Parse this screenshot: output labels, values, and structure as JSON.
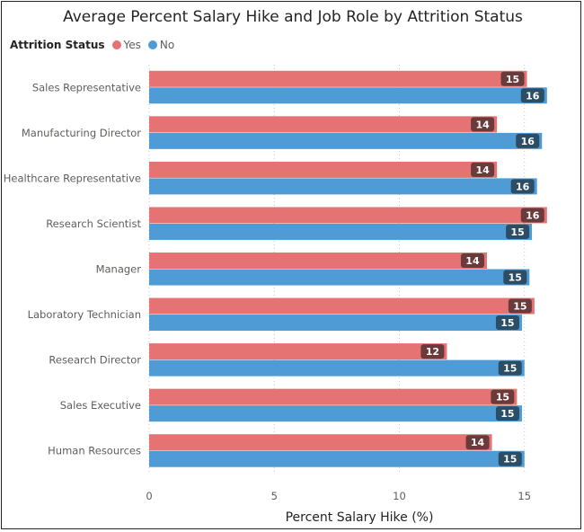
{
  "chart_data": {
    "type": "bar",
    "orientation": "horizontal",
    "title": "Average Percent Salary Hike and Job Role by Attrition Status",
    "xlabel": "Percent Salary Hike (%)",
    "ylabel": "",
    "xlim": [
      0,
      17.2
    ],
    "xticks": [
      0,
      5,
      10,
      15
    ],
    "grid": "x-dotted",
    "legend": {
      "title": "Attrition Status",
      "position": "top-left"
    },
    "categories": [
      "Sales Representative",
      "Manufacturing Director",
      "Healthcare Representative",
      "Research Scientist",
      "Manager",
      "Laboratory Technician",
      "Research Director",
      "Sales Executive",
      "Human Resources"
    ],
    "series": [
      {
        "name": "Yes",
        "color": "#e57373",
        "label_bg": "#6b3a3a",
        "values": [
          15.1,
          13.9,
          13.9,
          15.9,
          13.5,
          15.4,
          11.9,
          14.7,
          13.7
        ],
        "labels": [
          "15",
          "14",
          "14",
          "16",
          "14",
          "15",
          "12",
          "15",
          "14"
        ]
      },
      {
        "name": "No",
        "color": "#4e9bd6",
        "label_bg": "#2b4d66",
        "values": [
          15.9,
          15.7,
          15.5,
          15.3,
          15.2,
          14.9,
          15.0,
          14.9,
          15.0
        ],
        "labels": [
          "16",
          "16",
          "16",
          "15",
          "15",
          "15",
          "15",
          "15",
          "15"
        ]
      }
    ]
  }
}
